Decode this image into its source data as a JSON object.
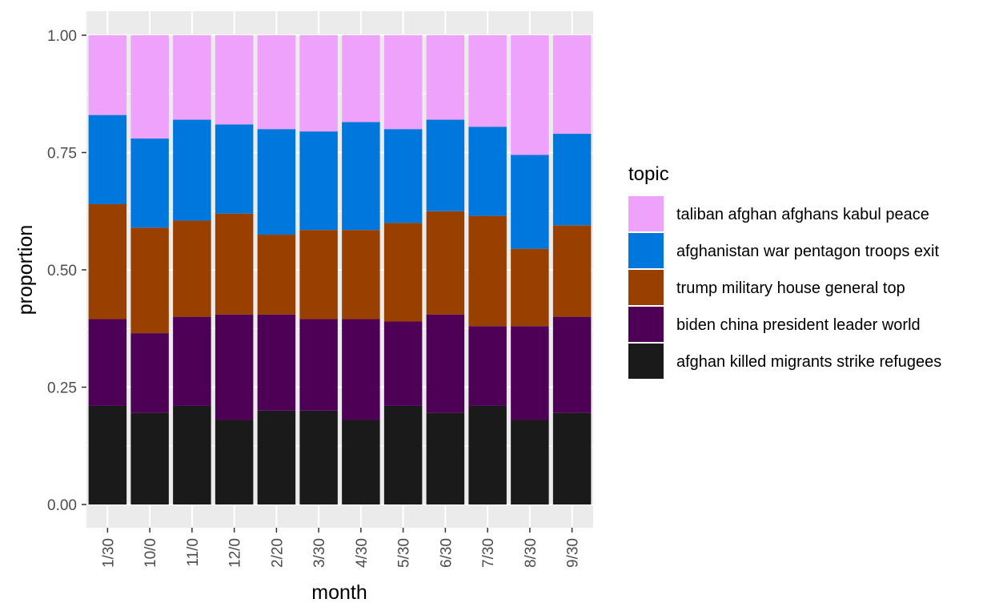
{
  "chart_data": {
    "type": "bar",
    "stacked": true,
    "xlabel": "month",
    "ylabel": "proportion",
    "ylim": [
      0,
      1
    ],
    "y_ticks": [
      "0.00",
      "0.25",
      "0.50",
      "0.75",
      "1.00"
    ],
    "categories": [
      "1/30",
      "10/0",
      "11/0",
      "12/0",
      "2/20",
      "3/30",
      "4/30",
      "5/30",
      "6/30",
      "7/30",
      "8/30",
      "9/30"
    ],
    "legend": {
      "title": "topic",
      "position": "right"
    },
    "grid": true,
    "series": [
      {
        "name": "afghan killed migrants strike refugees",
        "color": "#1a1a1a",
        "values": [
          0.21,
          0.195,
          0.21,
          0.18,
          0.2,
          0.2,
          0.18,
          0.21,
          0.195,
          0.21,
          0.18,
          0.195
        ]
      },
      {
        "name": "biden china president leader world",
        "color": "#4d0055",
        "values": [
          0.185,
          0.17,
          0.19,
          0.225,
          0.205,
          0.195,
          0.215,
          0.18,
          0.21,
          0.17,
          0.2,
          0.205
        ]
      },
      {
        "name": "trump military house general top",
        "color": "#994000",
        "values": [
          0.245,
          0.225,
          0.205,
          0.215,
          0.17,
          0.19,
          0.19,
          0.21,
          0.22,
          0.235,
          0.165,
          0.195
        ]
      },
      {
        "name": "afghanistan war pentagon troops exit",
        "color": "#0077dd",
        "values": [
          0.19,
          0.19,
          0.215,
          0.19,
          0.225,
          0.21,
          0.23,
          0.2,
          0.195,
          0.19,
          0.2,
          0.195
        ]
      },
      {
        "name": "taliban afghan afghans kabul peace",
        "color": "#eea2fc",
        "values": [
          0.17,
          0.22,
          0.18,
          0.19,
          0.2,
          0.205,
          0.185,
          0.2,
          0.18,
          0.195,
          0.255,
          0.21
        ]
      }
    ]
  }
}
